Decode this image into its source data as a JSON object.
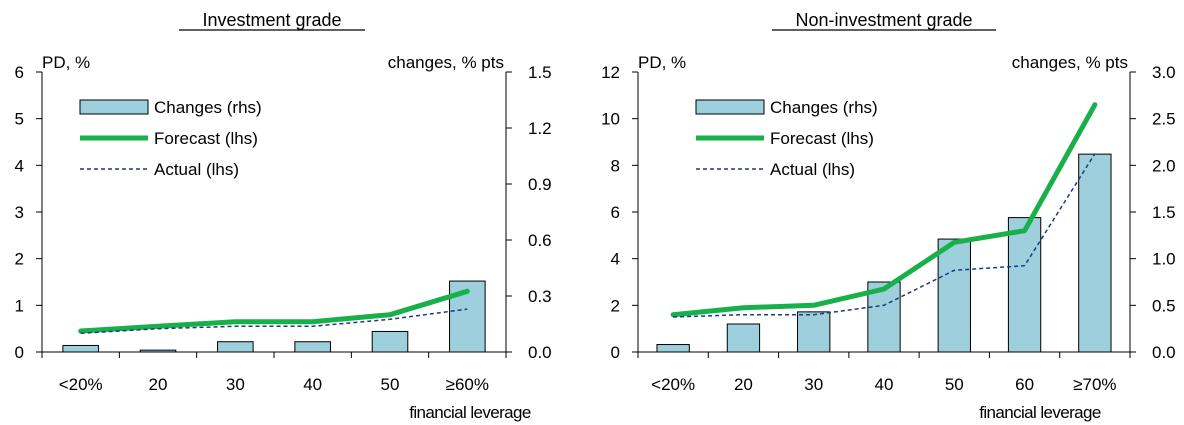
{
  "chart_data": [
    {
      "type": "bar",
      "title": "Investment grade",
      "xlabel": "financial leverage",
      "ylabel_left": "PD,  %",
      "ylabel_right": "changes, % pts",
      "categories": [
        "<20%",
        "20",
        "30",
        "40",
        "50",
        "≥60%"
      ],
      "ylim_left": [
        0,
        6
      ],
      "yticks_left": [
        "0",
        "1",
        "2",
        "3",
        "4",
        "5",
        "6"
      ],
      "ylim_right": [
        0,
        1.5
      ],
      "yticks_right": [
        "0.0",
        "0.3",
        "0.6",
        "0.9",
        "1.2",
        "1.5"
      ],
      "legend_position": "top-left",
      "series": [
        {
          "name": "Changes (rhs)",
          "kind": "bar",
          "axis": "right",
          "values": [
            0.035,
            0.01,
            0.055,
            0.055,
            0.11,
            0.38
          ]
        },
        {
          "name": "Forecast (lhs)",
          "kind": "line",
          "axis": "left",
          "values": [
            0.45,
            0.55,
            0.65,
            0.65,
            0.8,
            1.3
          ]
        },
        {
          "name": "Actual (lhs)",
          "kind": "dashed-line",
          "axis": "left",
          "values": [
            0.4,
            0.5,
            0.55,
            0.55,
            0.7,
            0.92
          ]
        }
      ]
    },
    {
      "type": "bar",
      "title": "Non-investment grade",
      "xlabel": "financial leverage",
      "ylabel_left": "PD,  %",
      "ylabel_right": "changes, % pts",
      "categories": [
        "<20%",
        "20",
        "30",
        "40",
        "50",
        "60",
        "≥70%"
      ],
      "ylim_left": [
        0,
        12
      ],
      "yticks_left": [
        "0",
        "2",
        "4",
        "6",
        "8",
        "10",
        "12"
      ],
      "ylim_right": [
        0,
        3
      ],
      "yticks_right": [
        "0.0",
        "0.5",
        "1.0",
        "1.5",
        "2.0",
        "2.5",
        "3.0"
      ],
      "legend_position": "top-left",
      "series": [
        {
          "name": "Changes (rhs)",
          "kind": "bar",
          "axis": "right",
          "values": [
            0.08,
            0.3,
            0.43,
            0.75,
            1.21,
            1.44,
            2.12
          ]
        },
        {
          "name": "Forecast (lhs)",
          "kind": "line",
          "axis": "left",
          "values": [
            1.6,
            1.9,
            2.0,
            2.7,
            4.7,
            5.2,
            10.6
          ]
        },
        {
          "name": "Actual (lhs)",
          "kind": "dashed-line",
          "axis": "left",
          "values": [
            1.5,
            1.6,
            1.6,
            2.0,
            3.5,
            3.7,
            8.5
          ]
        }
      ]
    }
  ],
  "colors": {
    "bar_fill": "#9dcfdd",
    "forecast": "#18b04a",
    "actual": "#1f3a78",
    "axis": "#000000"
  }
}
